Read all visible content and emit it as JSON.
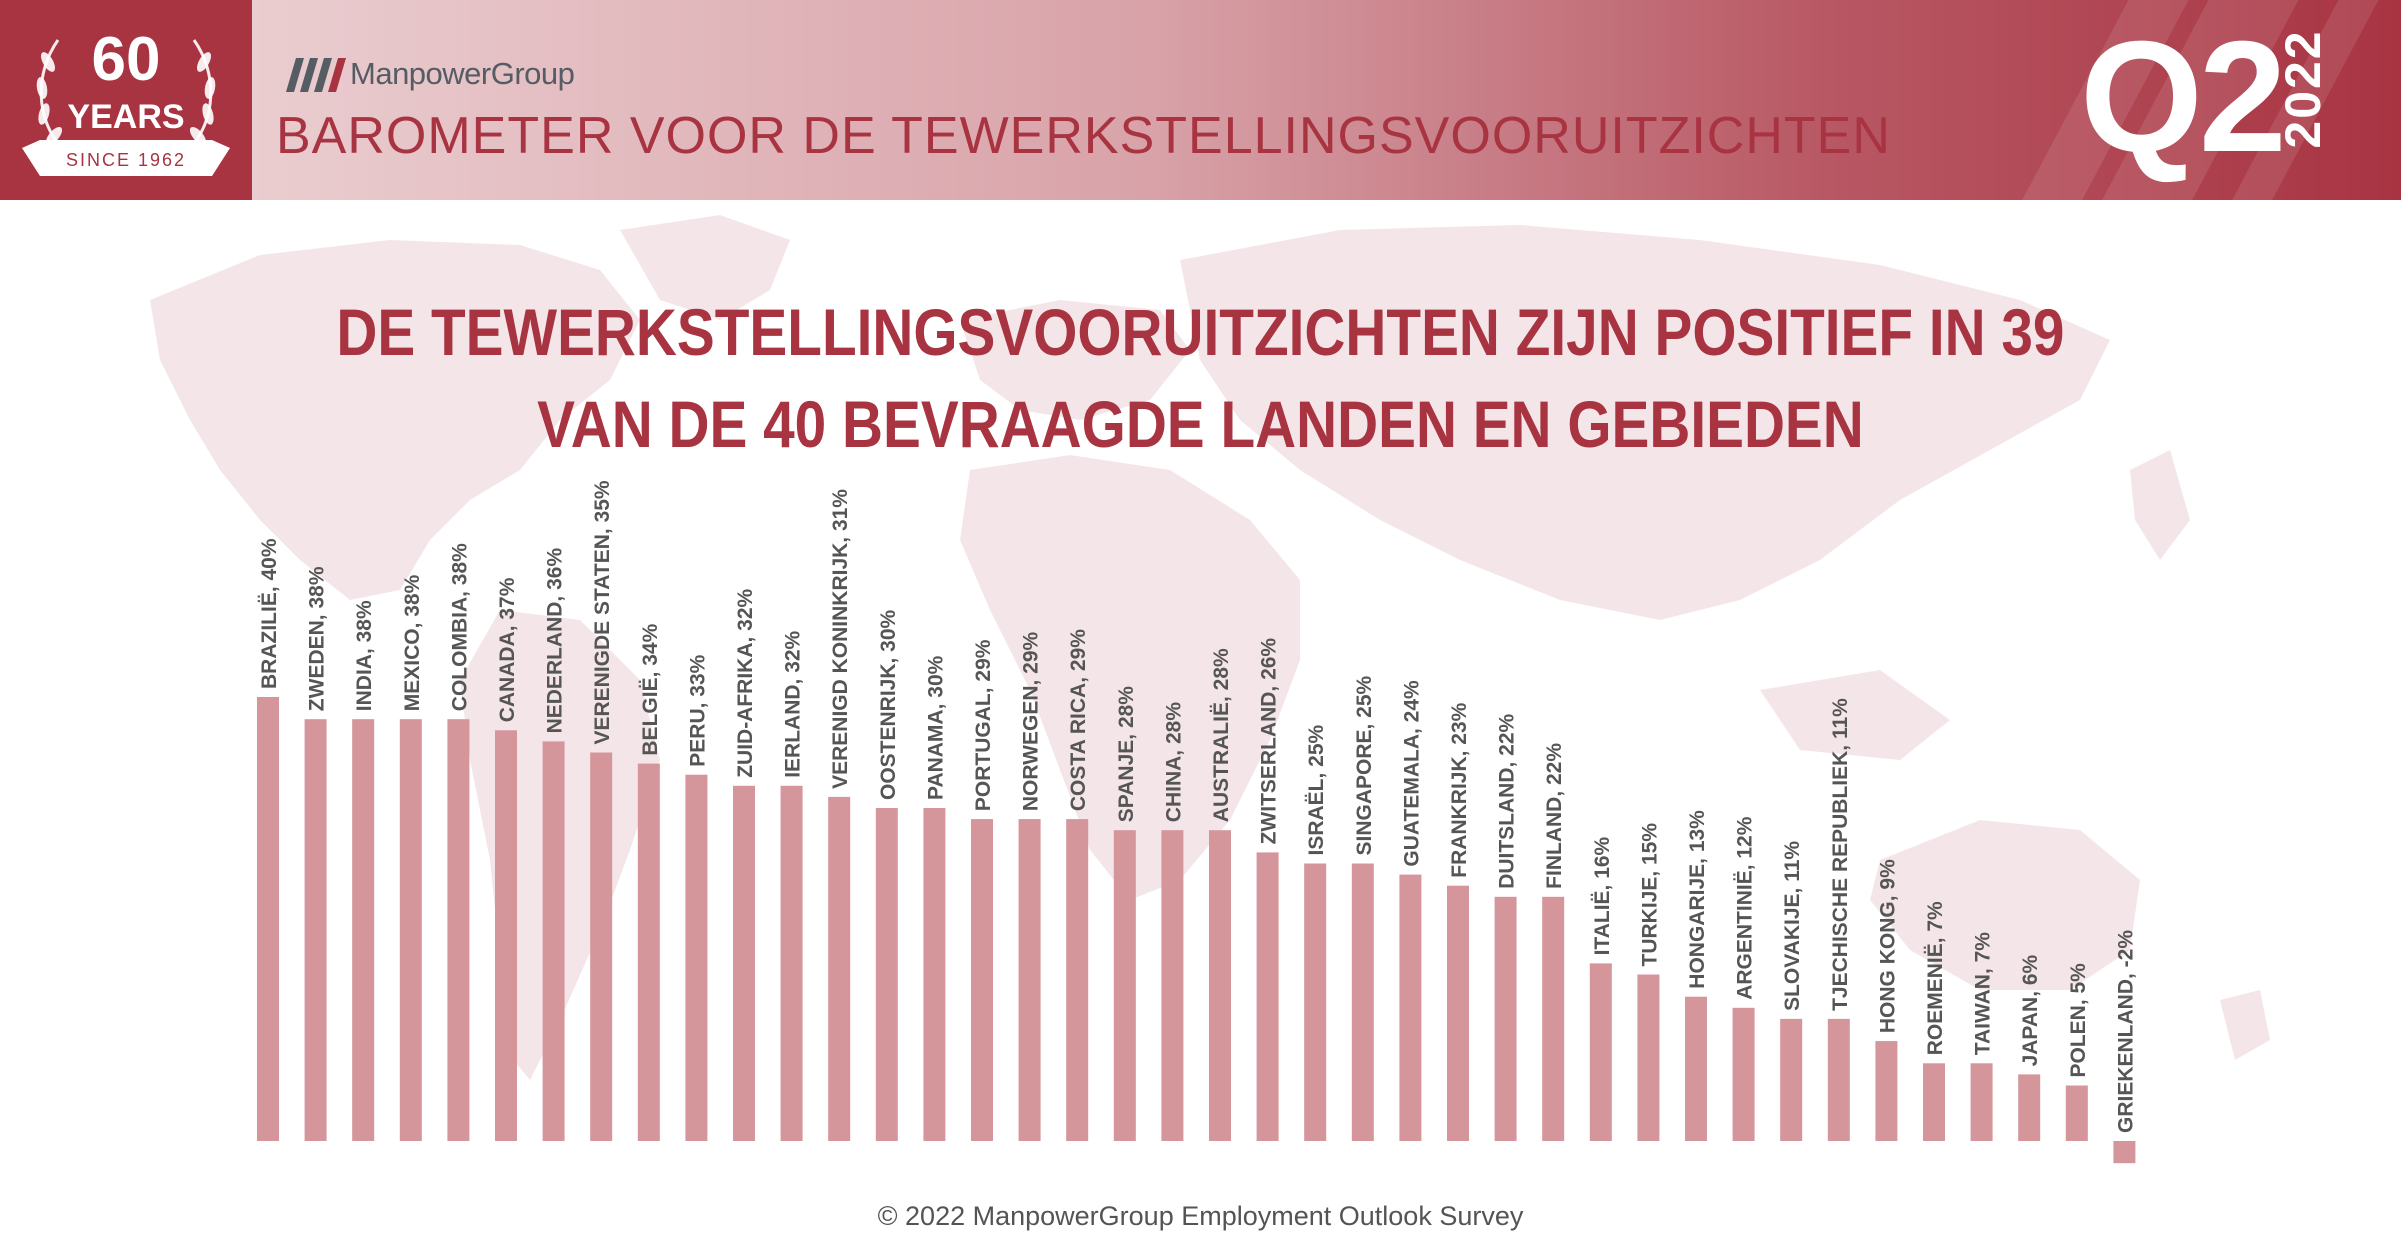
{
  "header": {
    "badge": {
      "number": "60",
      "word": "YEARS",
      "since": "SINCE 1962"
    },
    "brand": "ManpowerGroup",
    "title": "BAROMETER VOOR DE TEWERKSTELLINGSVOORUITZICHTEN",
    "quarter": "Q2",
    "year": "2022"
  },
  "colors": {
    "accent": "#a83442",
    "bar": "#d4959b",
    "label": "#555555",
    "map": "#f3e4e6"
  },
  "main_title": {
    "line1": "DE TEWERKSTELLINGSVOORUITZICHTEN ZIJN POSITIEF IN 39",
    "line2": "VAN DE 40 BEVRAAGDE LANDEN EN GEBIEDEN"
  },
  "chart_data": {
    "type": "bar",
    "title": "DE TEWERKSTELLINGSVOORUITZICHTEN ZIJN POSITIEF IN 39 VAN DE 40 BEVRAAGDE LANDEN EN GEBIEDEN",
    "xlabel": "",
    "ylabel": "",
    "unit": "%",
    "grid": false,
    "legend": "none",
    "categories": [
      "BRAZILIË",
      "ZWEDEN",
      "INDIA",
      "MEXICO",
      "COLOMBIA",
      "CANADA",
      "NEDERLAND",
      "VERENIGDE STATEN",
      "BELGIË",
      "PERU",
      "ZUID-AFRIKA",
      "IERLAND",
      "VERENIGD KONINKRIJK",
      "OOSTENRIJK",
      "PANAMA",
      "PORTUGAL",
      "NORWEGEN",
      "COSTA RICA",
      "SPANJE",
      "CHINA",
      "AUSTRALIË",
      "ZWITSERLAND",
      "ISRAËL",
      "SINGAPORE",
      "GUATEMALA",
      "FRANKRIJK",
      "DUITSLAND",
      "FINLAND",
      "ITALIË",
      "TURKIJE",
      "HONGARIJE",
      "ARGENTINIË",
      "SLOVAKIJE",
      "TJECHISCHE REPUBLIEK",
      "HONG KONG",
      "ROEMENIË",
      "TAIWAN",
      "JAPAN",
      "POLEN",
      "GRIEKENLAND"
    ],
    "values": [
      40,
      38,
      38,
      38,
      38,
      37,
      36,
      35,
      34,
      33,
      32,
      32,
      31,
      30,
      30,
      29,
      29,
      29,
      28,
      28,
      28,
      26,
      25,
      25,
      24,
      23,
      22,
      22,
      16,
      15,
      13,
      12,
      11,
      11,
      9,
      7,
      7,
      6,
      5,
      -2
    ],
    "ylim": [
      -2,
      40
    ]
  },
  "footer": "© 2022 ManpowerGroup Employment Outlook Survey"
}
